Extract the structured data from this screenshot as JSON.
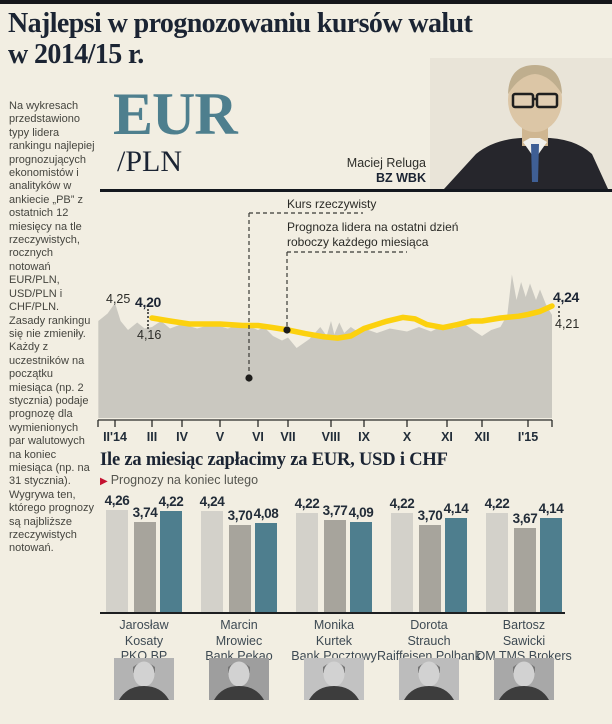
{
  "page": {
    "bg_color": "#f2eee2",
    "accent_teal": "#4e7f8e",
    "accent_yellow": "#fcd10e",
    "accent_red": "#c41230",
    "ink": "#1b2433"
  },
  "header": {
    "title_line1": "Najlepsi w prognozowaniu kursów walut",
    "title_line2": "w 2014/15 r."
  },
  "intro": {
    "text": "Na wykresach przedstawiono typy lidera rankingu najlepiej prognozujących ekonomistów i analityków w ankiecie „PB” z ostatnich 12 miesięcy na tle rzeczywistych, rocznych notowań EUR/PLN, USD/PLN i CHF/PLN. Zasady rankingu się nie zmieniły. Każdy z uczestników na początku miesiąca (np. 2 stycznia) podaje prognozę dla wymienionych par walutowych na koniec miesiąca (np. na 31 stycznia). Wygrywa ten, którego prognozy są najbliższe rzeczywistych notowań."
  },
  "currency_pair": {
    "base": "EUR",
    "quote": "/PLN"
  },
  "leader": {
    "name": "Maciej Reluga",
    "bank": "BZ WBK"
  },
  "chart_data": [
    {
      "type": "area",
      "title": "EUR/PLN w 2014/15",
      "x_tick_labels": [
        "II'14",
        "III",
        "IV",
        "V",
        "VI",
        "VII",
        "VIII",
        "IX",
        "X",
        "XI",
        "XII",
        "I'15"
      ],
      "ylim": [
        4.0,
        4.4
      ],
      "grid": false,
      "annotations": {
        "actual_label": "Kurs rzeczywisty",
        "forecast_label_line1": "Prognoza lidera na ostatni dzień",
        "forecast_label_line2": "roboczy każdego miesiąca"
      },
      "point_labels": {
        "actual_start": "4,25",
        "forecast_start": "4,20",
        "actual_at_forecast_start": "4,16",
        "forecast_end": "4,24",
        "actual_end": "4,21"
      },
      "series": [
        {
          "name": "Kurs rzeczywisty",
          "style": "area",
          "color": "#cac8c0",
          "points": [
            [
              -0.45,
              4.19
            ],
            [
              -0.2,
              4.215
            ],
            [
              0,
              4.25
            ],
            [
              0.15,
              4.19
            ],
            [
              0.35,
              4.16
            ],
            [
              0.6,
              4.185
            ],
            [
              0.8,
              4.165
            ],
            [
              1,
              4.17
            ],
            [
              1.3,
              4.19
            ],
            [
              1.6,
              4.165
            ],
            [
              2,
              4.18
            ],
            [
              2.4,
              4.165
            ],
            [
              2.8,
              4.18
            ],
            [
              3.2,
              4.165
            ],
            [
              3.6,
              4.18
            ],
            [
              4,
              4.16
            ],
            [
              4.2,
              4.17
            ],
            [
              4.5,
              4.14
            ],
            [
              4.8,
              4.125
            ],
            [
              5,
              4.135
            ],
            [
              5.2,
              4.1
            ],
            [
              5.5,
              4.13
            ],
            [
              5.75,
              4.17
            ],
            [
              5.9,
              4.14
            ],
            [
              6,
              4.19
            ],
            [
              6.1,
              4.145
            ],
            [
              6.25,
              4.185
            ],
            [
              6.4,
              4.15
            ],
            [
              6.6,
              4.17
            ],
            [
              6.8,
              4.155
            ],
            [
              7,
              4.165
            ],
            [
              7.3,
              4.15
            ],
            [
              7.6,
              4.165
            ],
            [
              8,
              4.155
            ],
            [
              8.3,
              4.17
            ],
            [
              8.6,
              4.155
            ],
            [
              8.9,
              4.175
            ],
            [
              9.2,
              4.165
            ],
            [
              9.5,
              4.18
            ],
            [
              9.8,
              4.155
            ],
            [
              10,
              4.14
            ],
            [
              10.2,
              4.16
            ],
            [
              10.4,
              4.17
            ],
            [
              10.55,
              4.21
            ],
            [
              10.65,
              4.345
            ],
            [
              10.75,
              4.26
            ],
            [
              10.85,
              4.32
            ],
            [
              10.95,
              4.27
            ],
            [
              11.05,
              4.315
            ],
            [
              11.2,
              4.26
            ],
            [
              11.3,
              4.295
            ],
            [
              11.45,
              4.245
            ],
            [
              11.6,
              4.21
            ]
          ]
        },
        {
          "name": "Prognoza lidera",
          "style": "line",
          "color": "#fcd10e",
          "points": [
            [
              1,
              4.2
            ],
            [
              1.6,
              4.19
            ],
            [
              2.2,
              4.18
            ],
            [
              3,
              4.18
            ],
            [
              3.6,
              4.175
            ],
            [
              4,
              4.175
            ],
            [
              4.5,
              4.168
            ],
            [
              5,
              4.16
            ],
            [
              5.4,
              4.148
            ],
            [
              5.8,
              4.138
            ],
            [
              6.2,
              4.133
            ],
            [
              6.6,
              4.14
            ],
            [
              7,
              4.165
            ],
            [
              7.5,
              4.188
            ],
            [
              7.9,
              4.202
            ],
            [
              8.2,
              4.197
            ],
            [
              8.5,
              4.178
            ],
            [
              8.9,
              4.168
            ],
            [
              9.3,
              4.178
            ],
            [
              9.7,
              4.19
            ],
            [
              10,
              4.19
            ],
            [
              10.4,
              4.2
            ],
            [
              10.8,
              4.206
            ],
            [
              11,
              4.212
            ],
            [
              11.3,
              4.222
            ],
            [
              11.6,
              4.24
            ]
          ]
        }
      ]
    },
    {
      "type": "bar",
      "title": "Ile za miesiąc zapłacimy za EUR, USD i CHF",
      "subtitle": "Prognozy na koniec lutego",
      "subtitle_marker": "▶",
      "series_names": [
        "EUR",
        "USD",
        "CHF"
      ],
      "series_colors": [
        "#d3d1ca",
        "#a7a49c",
        "#4e7e8e"
      ],
      "groups": [
        {
          "first_name": "Jarosław",
          "last_name": "Kosaty",
          "bank": "PKO BP",
          "values": [
            4.26,
            3.74,
            4.22
          ],
          "labels": [
            "4,26",
            "3,74",
            "4,22"
          ]
        },
        {
          "first_name": "Marcin",
          "last_name": "Mrowiec",
          "bank": "Bank Pekao",
          "values": [
            4.24,
            3.7,
            4.08
          ],
          "labels": [
            "4,24",
            "3,70",
            "4,08"
          ]
        },
        {
          "first_name": "Monika",
          "last_name": "Kurtek",
          "bank": "Bank Pocztowy",
          "values": [
            4.22,
            3.77,
            4.09
          ],
          "labels": [
            "4,22",
            "3,77",
            "4,09"
          ]
        },
        {
          "first_name": "Dorota",
          "last_name": "Strauch",
          "bank": "Raiffeisen Polbank",
          "values": [
            4.22,
            3.7,
            4.14
          ],
          "labels": [
            "4,22",
            "3,70",
            "4,14"
          ]
        },
        {
          "first_name": "Bartosz",
          "last_name": "Sawicki",
          "bank": "DM TMS Brokers",
          "values": [
            4.22,
            3.67,
            4.14
          ],
          "labels": [
            "4,22",
            "3,67",
            "4,14"
          ]
        }
      ]
    }
  ]
}
